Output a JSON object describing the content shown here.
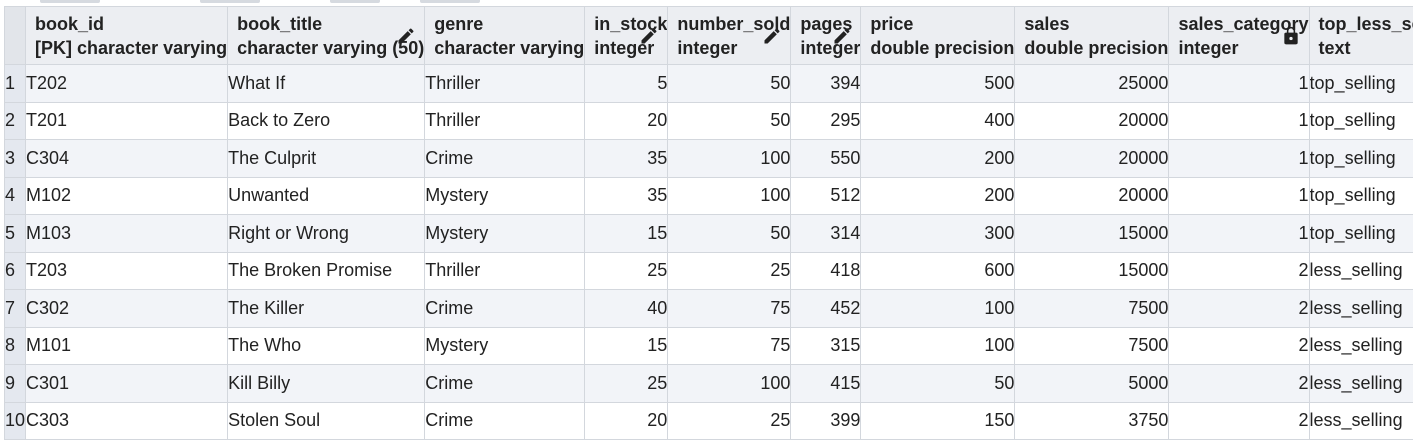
{
  "columns": [
    {
      "name": "book_id",
      "type": "[PK] character varying",
      "icon": ""
    },
    {
      "name": "book_title",
      "type": "character varying (50)",
      "icon": "pencil-icon"
    },
    {
      "name": "genre",
      "type": "character varying",
      "icon": ""
    },
    {
      "name": "in_stock",
      "type": "integer",
      "icon": "pencil-icon"
    },
    {
      "name": "number_sold",
      "type": "integer",
      "icon": "pencil-icon"
    },
    {
      "name": "pages",
      "type": "integer",
      "icon": "pencil-icon"
    },
    {
      "name": "price",
      "type": "double precision",
      "icon": ""
    },
    {
      "name": "sales",
      "type": "double precision",
      "icon": ""
    },
    {
      "name": "sales_category",
      "type": "integer",
      "icon": "lock-icon"
    },
    {
      "name": "top_less_selling",
      "type": "text",
      "icon": "lock-icon"
    }
  ],
  "rows": [
    [
      "1",
      "T202",
      "What If",
      "Thriller",
      "5",
      "50",
      "394",
      "500",
      "25000",
      "1",
      "top_selling"
    ],
    [
      "2",
      "T201",
      "Back to Zero",
      "Thriller",
      "20",
      "50",
      "295",
      "400",
      "20000",
      "1",
      "top_selling"
    ],
    [
      "3",
      "C304",
      "The Culprit",
      "Crime",
      "35",
      "100",
      "550",
      "200",
      "20000",
      "1",
      "top_selling"
    ],
    [
      "4",
      "M102",
      "Unwanted",
      "Mystery",
      "35",
      "100",
      "512",
      "200",
      "20000",
      "1",
      "top_selling"
    ],
    [
      "5",
      "M103",
      "Right or Wrong",
      "Mystery",
      "15",
      "50",
      "314",
      "300",
      "15000",
      "1",
      "top_selling"
    ],
    [
      "6",
      "T203",
      "The Broken Promise",
      "Thriller",
      "25",
      "25",
      "418",
      "600",
      "15000",
      "2",
      "less_selling"
    ],
    [
      "7",
      "C302",
      "The Killer",
      "Crime",
      "40",
      "75",
      "452",
      "100",
      "7500",
      "2",
      "less_selling"
    ],
    [
      "8",
      "M101",
      "The Who",
      "Mystery",
      "15",
      "75",
      "315",
      "100",
      "7500",
      "2",
      "less_selling"
    ],
    [
      "9",
      "C301",
      "Kill Billy",
      "Crime",
      "25",
      "100",
      "415",
      "50",
      "5000",
      "2",
      "less_selling"
    ],
    [
      "10",
      "C303",
      "Stolen Soul",
      "Crime",
      "20",
      "25",
      "399",
      "150",
      "3750",
      "2",
      "less_selling"
    ]
  ]
}
